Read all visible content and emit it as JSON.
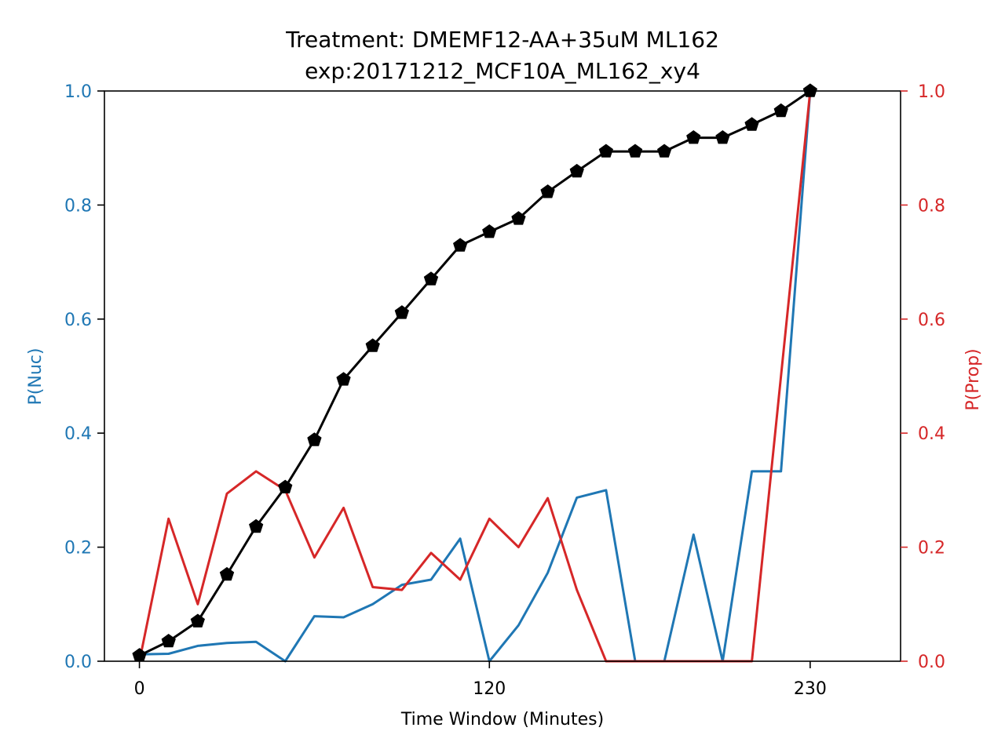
{
  "chart_data": {
    "type": "line",
    "title": "Treatment: DMEMF12-AA+35uM ML162",
    "subtitle": "exp:20171212_MCF10A_ML162_xy4",
    "xlabel": "Time Window (Minutes)",
    "ylabel_left": "P(Nuc)",
    "ylabel_right": "P(Prop)",
    "xlim": [
      -12,
      261
    ],
    "ylim_left": [
      0,
      1
    ],
    "ylim_right": [
      0,
      1
    ],
    "x_ticks": [
      0,
      120,
      230
    ],
    "x_tick_labels": [
      "0",
      "120",
      "230"
    ],
    "y_ticks_left": [
      "0.0",
      "0.2",
      "0.4",
      "0.6",
      "0.8",
      "1.0"
    ],
    "y_ticks_right": [
      "0.0",
      "0.2",
      "0.4",
      "0.6",
      "0.8",
      "1.0"
    ],
    "grid": false,
    "colors": {
      "nuc": "#1f77b4",
      "prop": "#d62728",
      "cumulative": "#000000"
    },
    "x": [
      0,
      10,
      20,
      30,
      40,
      50,
      60,
      70,
      80,
      90,
      100,
      110,
      120,
      130,
      140,
      150,
      160,
      170,
      180,
      190,
      200,
      210,
      220,
      230
    ],
    "series": [
      {
        "axis": "left",
        "color": "#1f77b4",
        "marker": "none",
        "values": [
          0.012,
          0.013,
          0.027,
          0.032,
          0.034,
          0.0,
          0.079,
          0.077,
          0.1,
          0.134,
          0.143,
          0.215,
          0.0,
          0.063,
          0.155,
          0.287,
          0.3,
          0.0,
          0.0,
          0.222,
          0.0,
          0.333,
          0.333,
          1.0
        ]
      },
      {
        "axis": "right",
        "color": "#d62728",
        "marker": "none",
        "values": [
          0.0,
          0.25,
          0.1,
          0.294,
          0.333,
          0.3,
          0.182,
          0.269,
          0.13,
          0.125,
          0.19,
          0.143,
          0.25,
          0.2,
          0.286,
          0.125,
          0.0,
          0.0,
          0.0,
          0.0,
          0.0,
          0.0,
          0.5,
          1.0
        ]
      },
      {
        "axis": "left",
        "color": "#000000",
        "marker": "pentagon",
        "values": [
          0.01,
          0.035,
          0.07,
          0.152,
          0.236,
          0.305,
          0.388,
          0.494,
          0.553,
          0.611,
          0.67,
          0.729,
          0.753,
          0.776,
          0.823,
          0.859,
          0.894,
          0.894,
          0.894,
          0.918,
          0.918,
          0.941,
          0.965,
          1.0
        ]
      }
    ]
  }
}
